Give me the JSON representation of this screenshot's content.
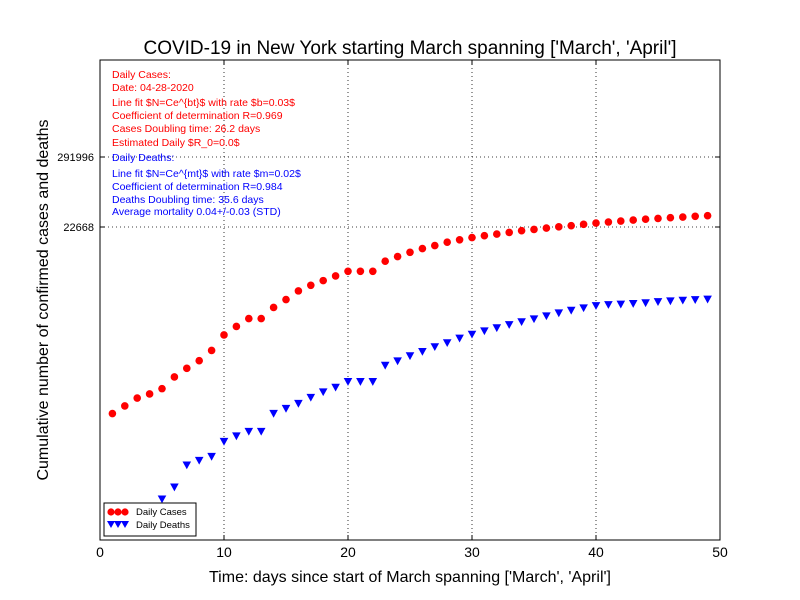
{
  "chart_data": {
    "type": "scatter",
    "title": "COVID-19 in New York starting March spanning ['March', 'April']",
    "xlabel": "Time: days since start of March spanning ['March', 'April']",
    "ylabel": "Cumulative number of confirmed cases and deaths",
    "xlim": [
      0,
      50
    ],
    "xticks": [
      "0",
      "10",
      "20",
      "30",
      "40",
      "50"
    ],
    "yticks": [
      {
        "label": "291996",
        "value": 291996
      },
      {
        "label": "22668",
        "value": 22668
      }
    ],
    "grid": true,
    "legend_position": "lower-left",
    "series": [
      {
        "name": "Daily Cases",
        "marker": "circle",
        "color": "#ff0000",
        "x": [
          1,
          2,
          3,
          4,
          5,
          6,
          7,
          8,
          9,
          10,
          11,
          12,
          13,
          14,
          15,
          16,
          17,
          18,
          19,
          20,
          21,
          22,
          23,
          24,
          25,
          26,
          27,
          28,
          29,
          30,
          31,
          32,
          33,
          34,
          35,
          36,
          37,
          38,
          39,
          40,
          41,
          42,
          43,
          44,
          45,
          46,
          47,
          48,
          49
        ],
        "y": [
          25,
          33,
          44,
          51,
          62,
          95,
          130,
          172,
          250,
          440,
          600,
          800,
          800,
          1200,
          1600,
          2200,
          2700,
          3200,
          3800,
          4500,
          4500,
          4500,
          6500,
          7700,
          9000,
          10300,
          11500,
          13000,
          14200,
          15400,
          16500,
          17500,
          18600,
          19800,
          20700,
          21800,
          22800,
          23800,
          25000,
          26200,
          27200,
          28200,
          29200,
          30100,
          31000,
          31800,
          32600,
          33500,
          34200
        ]
      },
      {
        "name": "Daily Deaths",
        "marker": "triangle-down",
        "color": "#0000ff",
        "x": [
          5,
          6,
          7,
          8,
          9,
          10,
          11,
          12,
          13,
          14,
          15,
          16,
          17,
          18,
          19,
          20,
          21,
          22,
          23,
          24,
          25,
          26,
          27,
          28,
          29,
          30,
          31,
          32,
          33,
          34,
          35,
          36,
          37,
          38,
          39,
          40,
          41,
          42,
          43,
          44,
          45,
          46,
          47,
          48,
          49
        ],
        "y": [
          1.1,
          1.7,
          3.8,
          4.5,
          5.2,
          9,
          11,
          13,
          13,
          25,
          30,
          36,
          45,
          55,
          65,
          80,
          80,
          80,
          145,
          170,
          205,
          240,
          285,
          330,
          390,
          450,
          510,
          570,
          640,
          710,
          790,
          880,
          980,
          1080,
          1180,
          1280,
          1330,
          1350,
          1380,
          1420,
          1480,
          1520,
          1560,
          1590,
          1620
        ]
      }
    ],
    "annotations": {
      "cases": [
        "Daily Cases:",
        "Date: 04-28-2020",
        "Line fit $N=Ce^{bt}$ with rate $b=0.03$",
        "Coefficient of determination R=0.969",
        "Cases Doubling time: 26.2 days",
        "Estimated Daily $R_0=0.0$"
      ],
      "deaths": [
        "Daily Deaths:",
        "Line fit $N=Ce^{mt}$ with rate $m=0.02$",
        "Coefficient of determination R=0.984",
        "Deaths Doubling time: 35.6 days",
        "Average mortality 0.04+/-0.03 (STD)"
      ]
    }
  }
}
